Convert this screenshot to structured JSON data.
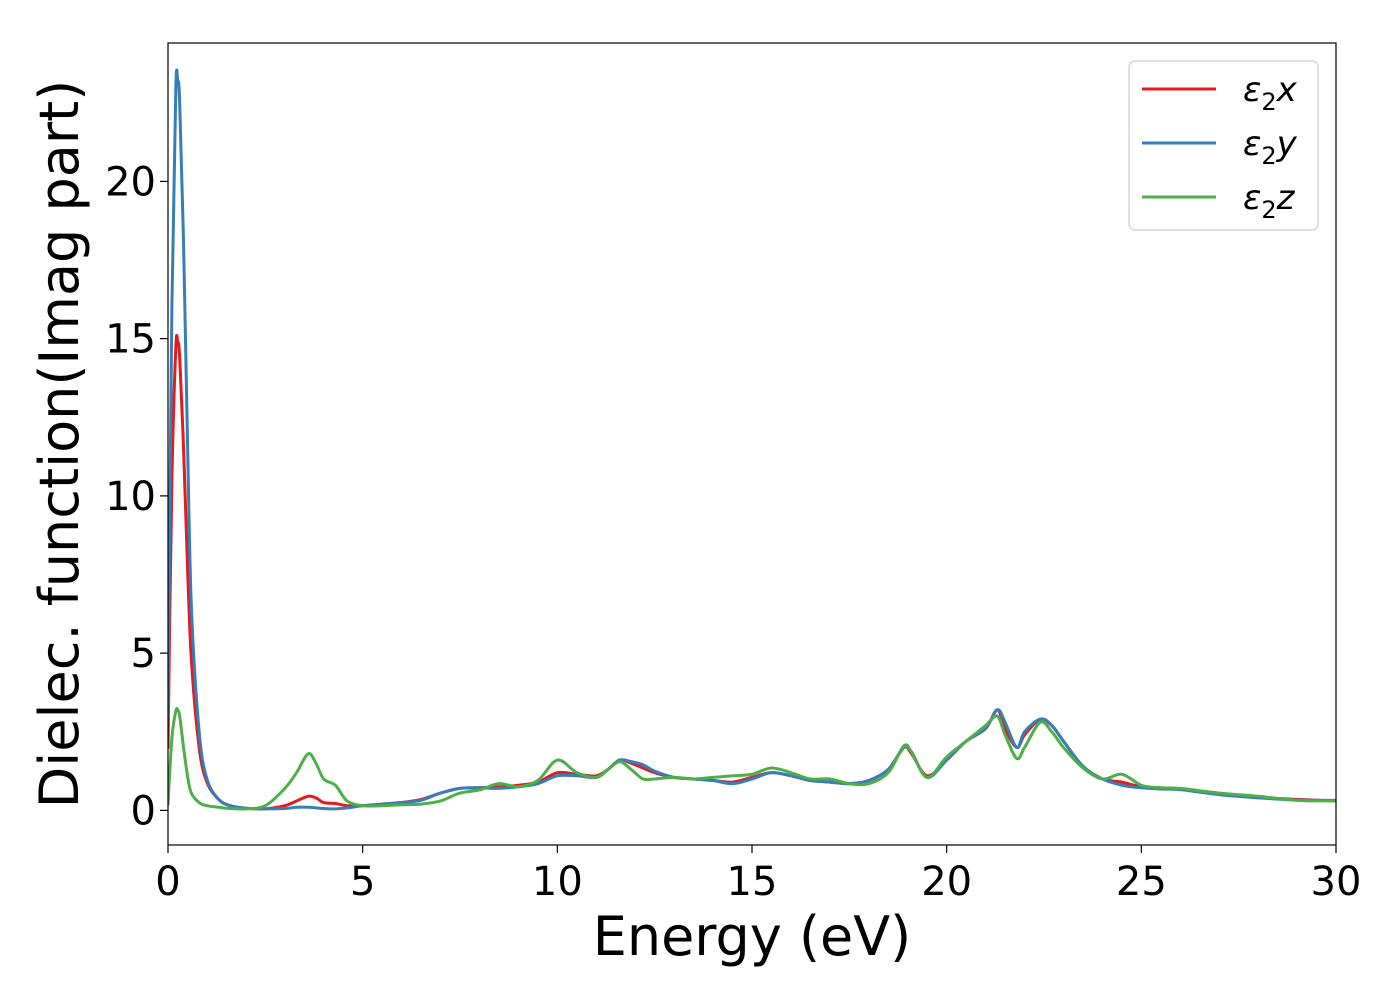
{
  "chart_data": {
    "type": "line",
    "xlabel": "Energy (eV)",
    "ylabel": "Dielec. function(Imag part)",
    "xlim": [
      0,
      30
    ],
    "ylim": [
      -1.1,
      24.4
    ],
    "xticks": [
      0,
      5,
      10,
      15,
      20,
      25,
      30
    ],
    "yticks": [
      0,
      5,
      10,
      15,
      20
    ],
    "grid": false,
    "legend_position": "top-right",
    "series": [
      {
        "name": "ε2x",
        "legend_main": "ε",
        "legend_sub": "2",
        "legend_suffix": "x",
        "color": "#e41a1c",
        "x": [
          0,
          0.1,
          0.2,
          0.25,
          0.3,
          0.4,
          0.5,
          0.6,
          0.8,
          1.0,
          1.3,
          1.6,
          2.0,
          2.5,
          3.0,
          3.3,
          3.6,
          3.8,
          4.0,
          4.3,
          4.6,
          5.0,
          5.5,
          6.0,
          6.5,
          7.0,
          7.5,
          8.0,
          8.5,
          9.0,
          9.5,
          10.0,
          10.5,
          11.0,
          11.3,
          11.6,
          11.9,
          12.2,
          12.5,
          13.0,
          13.5,
          14.0,
          14.5,
          15.0,
          15.5,
          16.0,
          16.5,
          17.0,
          17.5,
          18.0,
          18.5,
          18.9,
          19.1,
          19.5,
          20.0,
          20.5,
          21.0,
          21.3,
          21.5,
          21.8,
          22.0,
          22.4,
          22.7,
          23.0,
          23.5,
          24.0,
          24.5,
          25.0,
          25.5,
          26.0,
          27.0,
          28.0,
          29.0,
          30.0
        ],
        "y": [
          2.0,
          10.5,
          14.7,
          14.9,
          14.4,
          11.5,
          7.8,
          4.8,
          2.0,
          0.9,
          0.35,
          0.15,
          0.07,
          0.05,
          0.15,
          0.3,
          0.45,
          0.4,
          0.25,
          0.22,
          0.15,
          0.15,
          0.2,
          0.25,
          0.35,
          0.55,
          0.7,
          0.72,
          0.75,
          0.8,
          0.9,
          1.2,
          1.15,
          1.1,
          1.3,
          1.6,
          1.5,
          1.35,
          1.2,
          1.05,
          1.0,
          0.95,
          0.9,
          1.05,
          1.2,
          1.1,
          0.95,
          0.9,
          0.85,
          0.95,
          1.3,
          2.0,
          1.8,
          1.1,
          1.6,
          2.2,
          2.6,
          3.2,
          2.6,
          2.0,
          2.4,
          2.9,
          2.7,
          2.2,
          1.4,
          1.0,
          0.9,
          0.75,
          0.7,
          0.68,
          0.55,
          0.42,
          0.35,
          0.3
        ]
      },
      {
        "name": "ε2y",
        "legend_main": "ε",
        "legend_sub": "2",
        "legend_suffix": "y",
        "color": "#377eb8",
        "x": [
          0,
          0.1,
          0.2,
          0.25,
          0.3,
          0.4,
          0.5,
          0.6,
          0.8,
          1.0,
          1.3,
          1.6,
          2.0,
          2.5,
          3.0,
          3.3,
          3.6,
          3.8,
          4.0,
          4.3,
          4.6,
          5.0,
          5.5,
          6.0,
          6.5,
          7.0,
          7.5,
          8.0,
          8.5,
          9.0,
          9.5,
          10.0,
          10.5,
          11.0,
          11.3,
          11.6,
          11.9,
          12.2,
          12.5,
          13.0,
          13.5,
          14.0,
          14.5,
          15.0,
          15.5,
          16.0,
          16.5,
          17.0,
          17.5,
          18.0,
          18.5,
          18.9,
          19.1,
          19.5,
          20.0,
          20.5,
          21.0,
          21.3,
          21.5,
          21.8,
          22.0,
          22.4,
          22.7,
          23.0,
          23.5,
          24.0,
          24.5,
          25.0,
          25.5,
          26.0,
          27.0,
          28.0,
          29.0,
          30.0
        ],
        "y": [
          3.0,
          16.0,
          22.9,
          23.2,
          22.5,
          18.0,
          11.8,
          6.5,
          2.5,
          1.0,
          0.35,
          0.15,
          0.07,
          0.05,
          0.06,
          0.1,
          0.1,
          0.08,
          0.06,
          0.05,
          0.08,
          0.15,
          0.2,
          0.25,
          0.32,
          0.55,
          0.7,
          0.72,
          0.7,
          0.75,
          0.85,
          1.1,
          1.1,
          1.05,
          1.3,
          1.6,
          1.55,
          1.45,
          1.25,
          1.05,
          1.0,
          0.95,
          0.85,
          1.0,
          1.2,
          1.1,
          0.95,
          0.9,
          0.85,
          0.95,
          1.3,
          2.0,
          1.85,
          1.05,
          1.6,
          2.2,
          2.6,
          3.2,
          2.8,
          2.0,
          2.5,
          2.9,
          2.7,
          2.2,
          1.4,
          1.0,
          0.8,
          0.72,
          0.68,
          0.66,
          0.5,
          0.4,
          0.33,
          0.32
        ]
      },
      {
        "name": "ε2z",
        "legend_main": "ε",
        "legend_sub": "2",
        "legend_suffix": "z",
        "color": "#4daf4a",
        "x": [
          0,
          0.1,
          0.2,
          0.25,
          0.3,
          0.4,
          0.5,
          0.6,
          0.8,
          1.0,
          1.3,
          1.6,
          2.0,
          2.5,
          3.0,
          3.3,
          3.6,
          3.8,
          4.0,
          4.3,
          4.6,
          5.0,
          5.5,
          6.0,
          6.5,
          7.0,
          7.5,
          8.0,
          8.5,
          9.0,
          9.5,
          10.0,
          10.5,
          11.0,
          11.3,
          11.6,
          11.9,
          12.2,
          12.5,
          13.0,
          13.5,
          14.0,
          14.5,
          15.0,
          15.5,
          16.0,
          16.5,
          17.0,
          17.5,
          18.0,
          18.5,
          18.9,
          19.1,
          19.5,
          20.0,
          20.5,
          21.0,
          21.3,
          21.5,
          21.8,
          22.0,
          22.4,
          22.7,
          23.0,
          23.5,
          24.0,
          24.5,
          25.0,
          25.5,
          26.0,
          27.0,
          28.0,
          29.0,
          30.0
        ],
        "y": [
          0.2,
          2.3,
          3.15,
          3.2,
          3.0,
          2.0,
          1.1,
          0.55,
          0.25,
          0.15,
          0.1,
          0.06,
          0.05,
          0.15,
          0.7,
          1.2,
          1.8,
          1.5,
          1.0,
          0.8,
          0.3,
          0.15,
          0.15,
          0.18,
          0.2,
          0.3,
          0.55,
          0.65,
          0.85,
          0.75,
          0.95,
          1.6,
          1.2,
          1.05,
          1.3,
          1.55,
          1.3,
          1.0,
          1.0,
          1.05,
          1.0,
          1.05,
          1.1,
          1.15,
          1.35,
          1.2,
          1.0,
          1.0,
          0.85,
          0.85,
          1.2,
          2.05,
          1.85,
          1.05,
          1.7,
          2.2,
          2.7,
          3.0,
          2.4,
          1.65,
          2.0,
          2.8,
          2.5,
          2.0,
          1.35,
          1.0,
          1.15,
          0.8,
          0.72,
          0.7,
          0.55,
          0.45,
          0.32,
          0.3
        ]
      }
    ]
  }
}
